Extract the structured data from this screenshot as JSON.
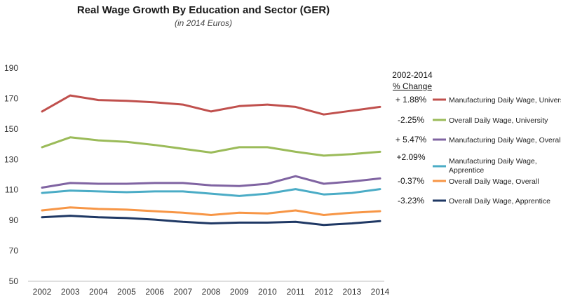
{
  "chart_data": {
    "type": "line",
    "title": "Real Wage Growth By Education and Sector (GER)",
    "subtitle": "(in 2014 Euros)",
    "x": [
      "2002",
      "2003",
      "2004",
      "2005",
      "2006",
      "2007",
      "2008",
      "2009",
      "2010",
      "2011",
      "2012",
      "2013",
      "2014"
    ],
    "ylim": [
      50,
      190
    ],
    "yticks": [
      50,
      70,
      90,
      110,
      130,
      150,
      170,
      190
    ],
    "grid": false,
    "legend_position": "right",
    "legend_header": [
      "2002-2014",
      "% Change"
    ],
    "series": [
      {
        "name": "Manufacturing Daily Wage, University",
        "color": "#c0504d",
        "change": "+ 1.88%",
        "values": [
          161.5,
          172,
          169,
          168.5,
          167.5,
          166,
          161.5,
          165,
          166,
          164.5,
          159.5,
          162,
          164.5
        ]
      },
      {
        "name": "Overall Daily Wage, University",
        "color": "#9bbb59",
        "change": "-2.25%",
        "values": [
          138,
          144.5,
          142.5,
          141.5,
          139.5,
          137,
          134.5,
          138,
          138,
          135,
          132.5,
          133.5,
          135
        ]
      },
      {
        "name": "Manufacturing Daily Wage, Overall",
        "color": "#8064a2",
        "change": "+ 5.47%",
        "values": [
          111.5,
          114.5,
          114,
          114,
          114.5,
          114.5,
          113,
          112.5,
          114,
          119,
          114,
          115.5,
          117.5
        ]
      },
      {
        "name": "Manufacturing Daily Wage, Apprentice",
        "color": "#4bacc6",
        "change": "+2.09%",
        "values": [
          108,
          109.5,
          109,
          108.5,
          109,
          109,
          107.5,
          106,
          107.5,
          110.5,
          107,
          108,
          110.5
        ]
      },
      {
        "name": "Overall Daily Wage, Overall",
        "color": "#f79646",
        "change": "-0.37%",
        "values": [
          96.5,
          98.5,
          97.5,
          97,
          96,
          95,
          93.5,
          95,
          94.5,
          96.5,
          93.5,
          95,
          96
        ]
      },
      {
        "name": "Overall Daily Wage, Apprentice",
        "color": "#1f3864",
        "change": "-3.23%",
        "values": [
          92,
          93,
          92,
          91.5,
          90.5,
          89,
          88,
          88.5,
          88.5,
          89,
          87,
          88,
          89.5
        ]
      }
    ]
  }
}
